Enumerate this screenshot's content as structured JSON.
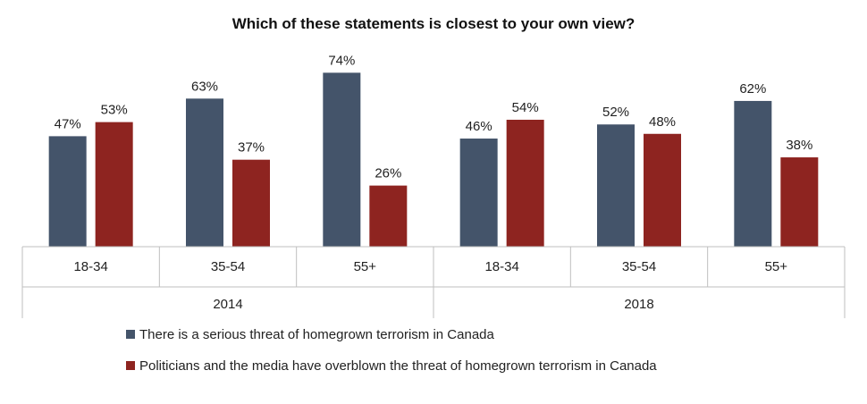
{
  "chart_data": {
    "type": "bar",
    "title": "Which of these statements is closest to your own view?",
    "groups": [
      {
        "label": "2014",
        "categories": [
          "18-34",
          "35-54",
          "55+"
        ]
      },
      {
        "label": "2018",
        "categories": [
          "18-34",
          "35-54",
          "55+"
        ]
      }
    ],
    "categories": [
      "18-34",
      "35-54",
      "55+",
      "18-34",
      "35-54",
      "55+"
    ],
    "series": [
      {
        "name": "There is a serious threat of homegrown terrorism in Canada",
        "values": [
          47,
          63,
          74,
          46,
          52,
          62
        ],
        "color": "#44546a"
      },
      {
        "name": "Politicians and the media have overblown the threat of homegrown terrorism in Canada",
        "values": [
          53,
          37,
          26,
          54,
          48,
          38
        ],
        "color": "#8e2420"
      }
    ],
    "value_suffix": "%",
    "ylim": [
      0,
      100
    ],
    "grid": false,
    "legend_position": "bottom-left"
  }
}
